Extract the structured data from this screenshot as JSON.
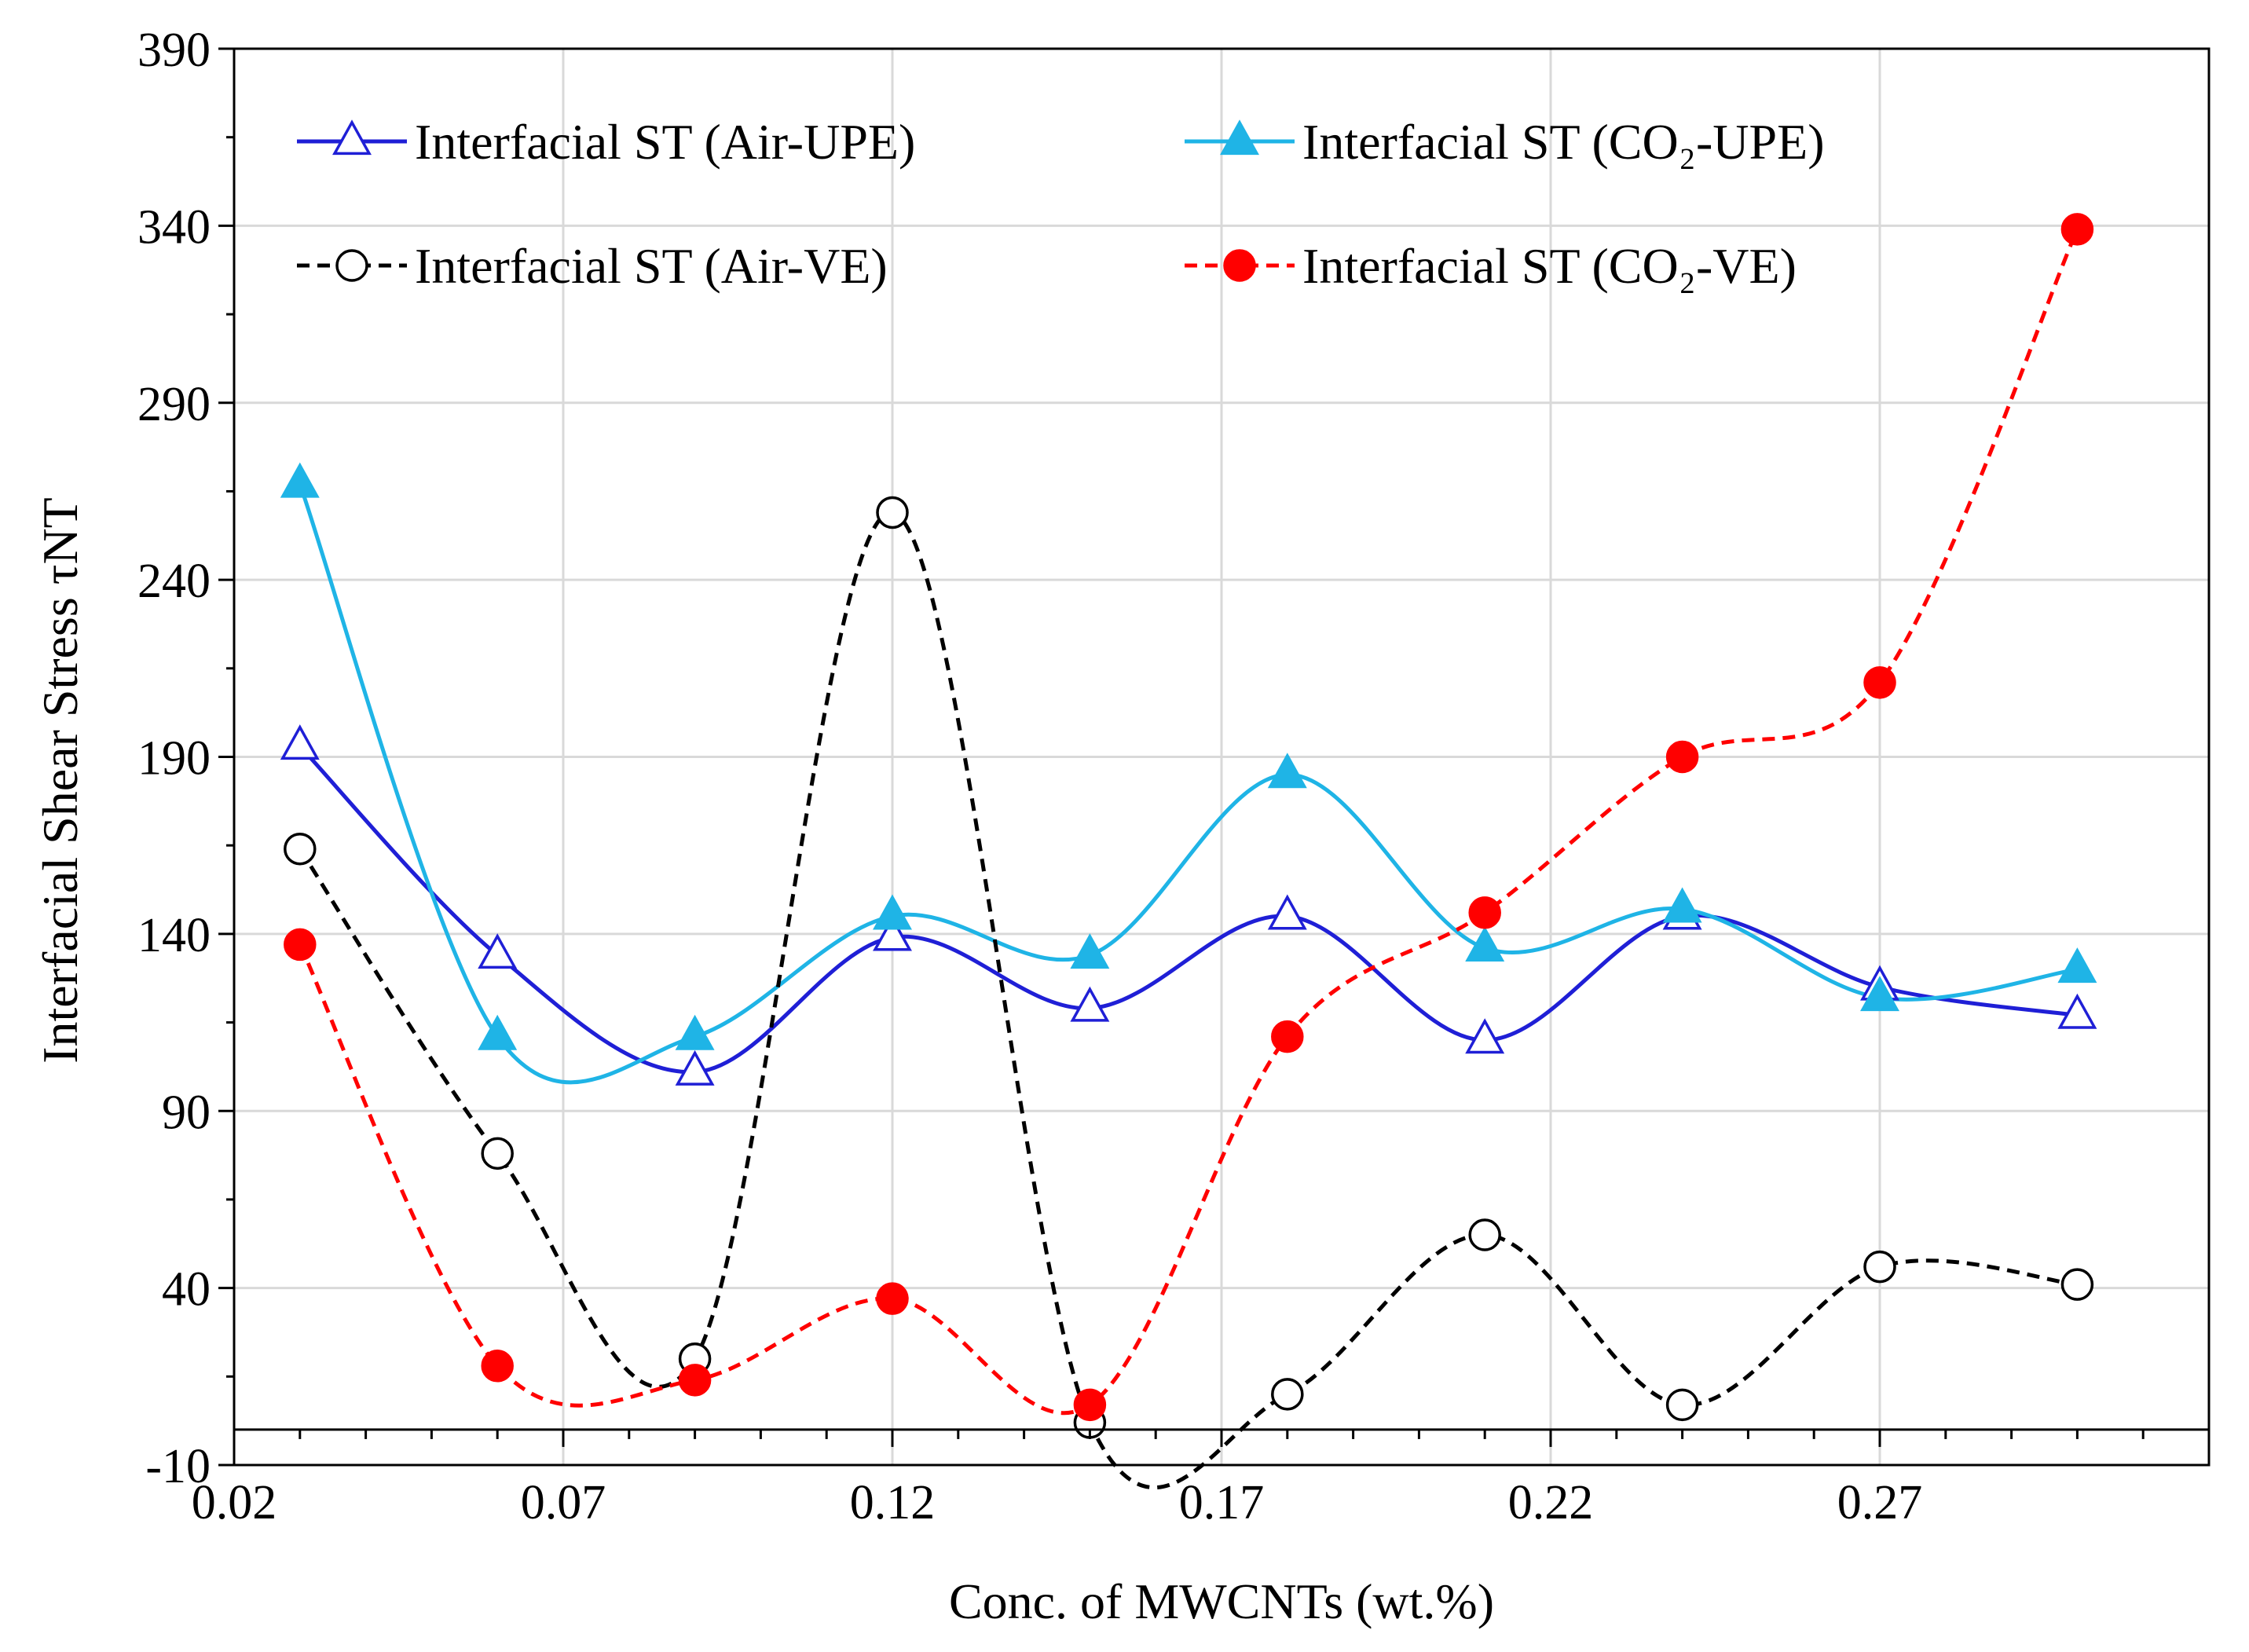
{
  "chart_data": {
    "type": "line",
    "title": "",
    "xlabel": "Conc. of MWCNTs  (wt.%)",
    "ylabel": "Interfacial  Shear  Stress  τNT",
    "xlim": [
      0.02,
      0.32
    ],
    "ylim": [
      -10,
      390
    ],
    "x_ticks": [
      "0.02",
      "0.07",
      "0.12",
      "0.17",
      "0.22",
      "0.27"
    ],
    "y_ticks": [
      "390",
      "340",
      "290",
      "240",
      "190",
      "140",
      "90",
      "40",
      "-10"
    ],
    "grid": true,
    "legend_position": "top",
    "x": [
      0.03,
      0.06,
      0.09,
      0.12,
      0.15,
      0.18,
      0.21,
      0.24,
      0.27,
      0.3
    ],
    "series": [
      {
        "name": "Interfacial ST (Air-UPE)",
        "color": "#1f1fd6",
        "line": "solid",
        "marker": "triangle-open",
        "values": [
          193,
          134,
          101,
          139,
          119,
          145,
          110,
          145,
          125,
          117
        ]
      },
      {
        "name": "Interfacial  ST (CO₂-UPE)",
        "color": "#1fb4e6",
        "line": "solid",
        "marker": "triangle-filled",
        "values": [
          267,
          111,
          111,
          145,
          134,
          185,
          136,
          147,
          122,
          130
        ]
      },
      {
        "name": "Interfacial ST (Air-VE)",
        "color": "#000000",
        "line": "dashed",
        "marker": "circle-open",
        "values": [
          164,
          78,
          20,
          259,
          2,
          10,
          55,
          7,
          46,
          41
        ]
      },
      {
        "name": "Interfacial  ST (CO₂-VE)",
        "color": "#ff0000",
        "line": "dashed",
        "marker": "circle-filled",
        "values": [
          137,
          18,
          14,
          37,
          7,
          111,
          146,
          190,
          211,
          339
        ]
      }
    ]
  }
}
